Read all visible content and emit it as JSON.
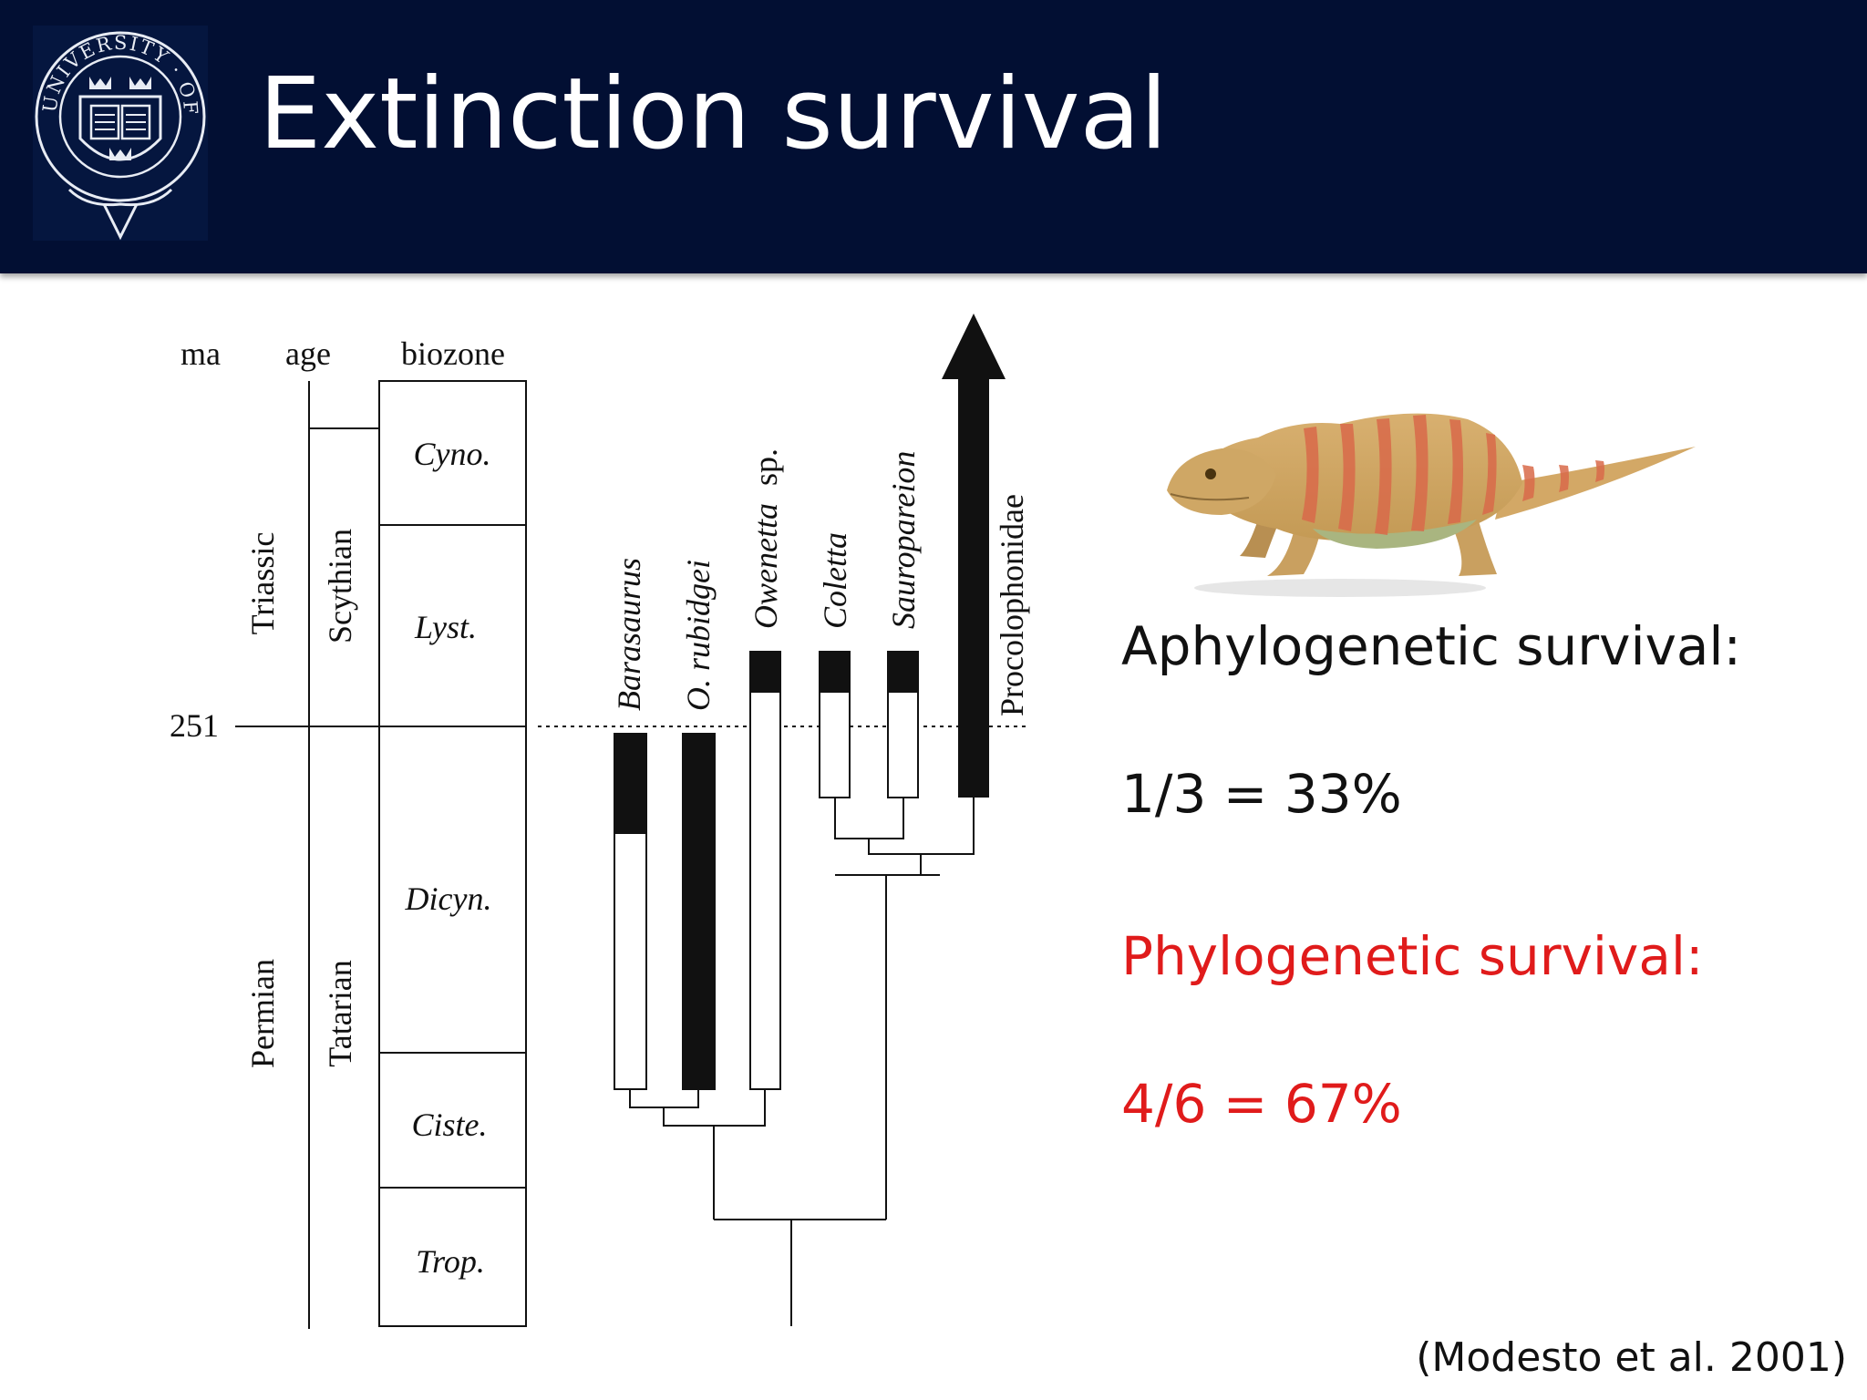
{
  "slide": {
    "title": "Extinction survival",
    "logo": {
      "name": "university-of-oxford-crest",
      "ring_text": "UNIVERSITY · OF · OXFORD",
      "book_text": "DOMI NVS ILLV MINA TIO MEA"
    },
    "colors": {
      "header_bg": "#020f33",
      "title": "#ffffff",
      "emphasis_red": "#e01b1b"
    }
  },
  "diagram": {
    "column_headers": [
      "ma",
      "age",
      "biozone"
    ],
    "boundary_label": "251",
    "periods": [
      "Triassic",
      "Permian"
    ],
    "ages": [
      "Scythian",
      "Tatarian"
    ],
    "biozones": [
      "Cyno.",
      "Lyst.",
      "Dicyn.",
      "Ciste.",
      "Trop."
    ],
    "taxa": [
      "Barasaurus",
      "O. rubidgei",
      "Owenetta",
      "sp.",
      "Coletta",
      "Sauropareion",
      "Procolophonidae"
    ]
  },
  "stats": {
    "aphylo_label": "Aphylogenetic survival:",
    "aphylo_value": "1/3 = 33%",
    "phylo_label": "Phylogenetic survival:",
    "phylo_value": "4/6 = 67%"
  },
  "citation": "(Modesto et al. 2001)",
  "illustration": {
    "name": "procolophonid-reptile-illustration"
  }
}
